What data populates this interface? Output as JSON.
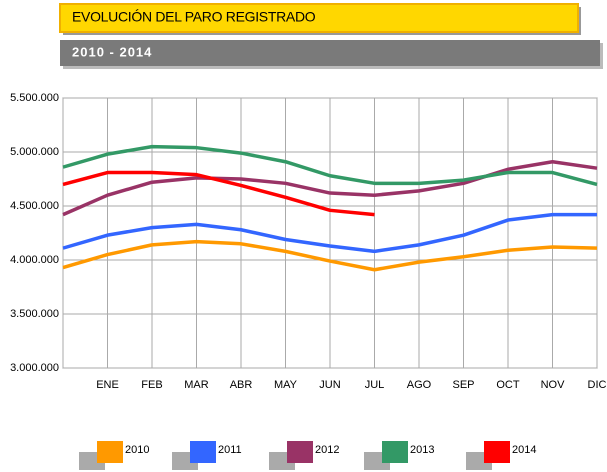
{
  "chart_data": {
    "type": "line",
    "title": "EVOLUCIÓN DEL PARO REGISTRADO",
    "subtitle": "2010 - 2014",
    "categories": [
      null,
      "ENE",
      "FEB",
      "MAR",
      "ABR",
      "MAY",
      "JUN",
      "JUL",
      "AGO",
      "SEP",
      "OCT",
      "NOV",
      "DIC"
    ],
    "series": [
      {
        "name": "2010",
        "color": "#ff9900",
        "values": [
          3930000,
          4050000,
          4140000,
          4170000,
          4150000,
          4080000,
          3990000,
          3910000,
          3980000,
          4030000,
          4090000,
          4120000,
          4110000
        ]
      },
      {
        "name": "2011",
        "color": "#3366ff",
        "values": [
          4110000,
          4230000,
          4300000,
          4330000,
          4280000,
          4190000,
          4130000,
          4080000,
          4140000,
          4230000,
          4370000,
          4420000,
          4420000
        ]
      },
      {
        "name": "2012",
        "color": "#993366",
        "values": [
          4420000,
          4600000,
          4720000,
          4760000,
          4750000,
          4710000,
          4620000,
          4600000,
          4640000,
          4710000,
          4840000,
          4910000,
          4850000
        ]
      },
      {
        "name": "2013",
        "color": "#339966",
        "values": [
          4860000,
          4980000,
          5050000,
          5040000,
          4990000,
          4910000,
          4780000,
          4710000,
          4710000,
          4740000,
          4810000,
          4810000,
          4700000
        ]
      },
      {
        "name": "2014",
        "color": "#ff0000",
        "values": [
          4700000,
          4810000,
          4810000,
          4790000,
          4690000,
          4580000,
          4460000,
          4420000,
          null,
          null,
          null,
          null,
          null
        ]
      }
    ],
    "ylim": [
      3000000,
      5500000
    ],
    "yticks": [
      {
        "value": 3000000,
        "label": "3.000.000"
      },
      {
        "value": 3500000,
        "label": "3.500.000"
      },
      {
        "value": 4000000,
        "label": "4.000.000"
      },
      {
        "value": 4500000,
        "label": "4.500.000"
      },
      {
        "value": 5000000,
        "label": "5.000.000"
      },
      {
        "value": 5500000,
        "label": "5.500.000"
      }
    ],
    "grid": true
  }
}
